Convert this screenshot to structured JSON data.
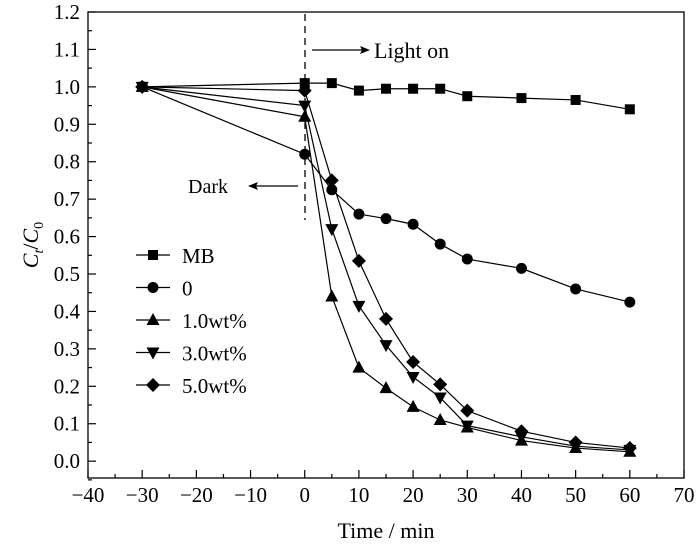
{
  "chart_data": {
    "type": "line",
    "title": "",
    "xlabel": "Time / min",
    "ylabel": {
      "c1": "C",
      "s1": "t",
      "slash": "/",
      "c2": "C",
      "s2": "0"
    },
    "xlim": [
      -40,
      70
    ],
    "ylim": [
      -0.045,
      1.2
    ],
    "xticks": [
      -40,
      -30,
      -20,
      -10,
      0,
      10,
      20,
      30,
      40,
      50,
      60,
      70
    ],
    "xtick_labels": [
      "−40",
      "−30",
      "−20",
      "−10",
      "0",
      "10",
      "20",
      "30",
      "40",
      "50",
      "60",
      "70"
    ],
    "yticks": [
      0.0,
      0.1,
      0.2,
      0.3,
      0.4,
      0.5,
      0.6,
      0.7,
      0.8,
      0.9,
      1.0,
      1.1,
      1.2
    ],
    "ytick_labels": [
      "0.0",
      "0.1",
      "0.2",
      "0.3",
      "0.4",
      "0.5",
      "0.6",
      "0.7",
      "0.8",
      "0.9",
      "1.0",
      "1.1",
      "1.2"
    ],
    "grid": false,
    "legend_position": "center-left",
    "x": [
      -30,
      0,
      5,
      10,
      15,
      20,
      25,
      30,
      40,
      50,
      60
    ],
    "series": [
      {
        "name": "MB",
        "marker": "square",
        "values": [
          1.0,
          1.01,
          1.01,
          0.99,
          0.995,
          0.995,
          0.995,
          0.975,
          0.97,
          0.965,
          0.94
        ]
      },
      {
        "name": "0",
        "marker": "circle",
        "values": [
          1.0,
          0.82,
          0.725,
          0.66,
          0.648,
          0.633,
          0.58,
          0.54,
          0.515,
          0.46,
          0.425
        ]
      },
      {
        "name": "1.0wt%",
        "marker": "triangle-up",
        "values": [
          1.0,
          0.92,
          0.44,
          0.25,
          0.195,
          0.145,
          0.11,
          0.09,
          0.055,
          0.035,
          0.025
        ]
      },
      {
        "name": "3.0wt%",
        "marker": "triangle-down",
        "values": [
          1.0,
          0.95,
          0.62,
          0.415,
          0.31,
          0.225,
          0.17,
          0.095,
          0.065,
          0.04,
          0.03
        ]
      },
      {
        "name": "5.0wt%",
        "marker": "diamond",
        "values": [
          1.0,
          0.99,
          0.75,
          0.535,
          0.38,
          0.265,
          0.205,
          0.135,
          0.08,
          0.05,
          0.035
        ]
      }
    ],
    "annotations": {
      "light_on": "Light on",
      "dark": "Dark"
    }
  }
}
